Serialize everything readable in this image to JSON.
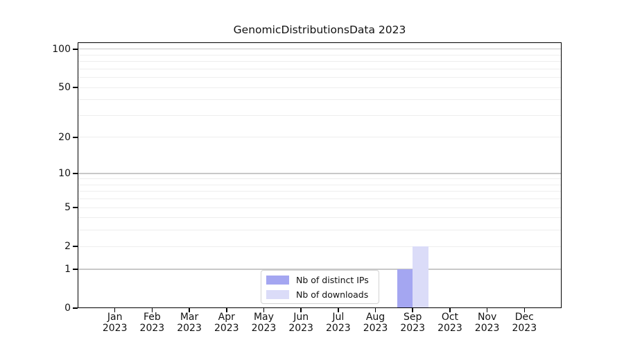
{
  "chart_data": {
    "type": "bar",
    "title": "GenomicDistributionsData 2023",
    "xlabel": "",
    "ylabel": "",
    "yscale": "log1p",
    "ylim": [
      0,
      113
    ],
    "grid": "horizontal",
    "categories": [
      {
        "month": "Jan",
        "year": "2023"
      },
      {
        "month": "Feb",
        "year": "2023"
      },
      {
        "month": "Mar",
        "year": "2023"
      },
      {
        "month": "Apr",
        "year": "2023"
      },
      {
        "month": "May",
        "year": "2023"
      },
      {
        "month": "Jun",
        "year": "2023"
      },
      {
        "month": "Jul",
        "year": "2023"
      },
      {
        "month": "Aug",
        "year": "2023"
      },
      {
        "month": "Sep",
        "year": "2023"
      },
      {
        "month": "Oct",
        "year": "2023"
      },
      {
        "month": "Nov",
        "year": "2023"
      },
      {
        "month": "Dec",
        "year": "2023"
      }
    ],
    "series": [
      {
        "name": "Nb of distinct IPs",
        "color": "#a4a6f1",
        "values": [
          0,
          0,
          0,
          0,
          0,
          0,
          0,
          0,
          1,
          0,
          0,
          0
        ]
      },
      {
        "name": "Nb of downloads",
        "color": "#dbdcf8",
        "values": [
          0,
          0,
          0,
          0,
          0,
          0,
          0,
          0,
          2,
          0,
          0,
          0
        ]
      }
    ],
    "y_labeled_ticks": [
      0,
      1,
      2,
      5,
      10,
      20,
      50,
      100
    ],
    "y_decade_gridlines": [
      1,
      10,
      100
    ],
    "y_minor_gridlines": [
      2,
      3,
      4,
      5,
      6,
      7,
      8,
      9,
      20,
      30,
      40,
      50,
      60,
      70,
      80,
      90
    ],
    "legend": {
      "position": "bottom-center"
    },
    "colors": {
      "axis": "#000000",
      "decade_gridline": "#c8c8c8",
      "minor_gridline": "#eeeeee",
      "background": "#ffffff"
    }
  }
}
